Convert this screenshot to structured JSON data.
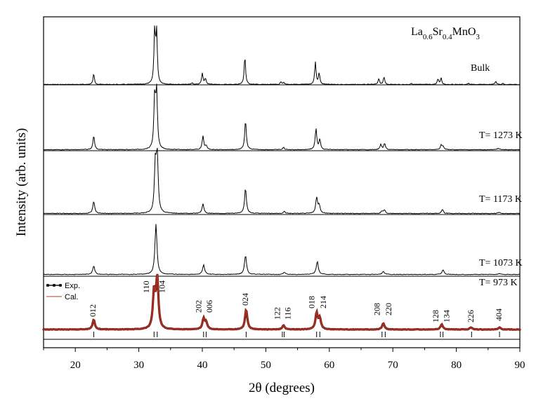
{
  "chart_data": {
    "type": "line",
    "title": "",
    "formula": {
      "parts": [
        {
          "text": "La",
          "sub": false
        },
        {
          "text": "0.6",
          "sub": true
        },
        {
          "text": "Sr",
          "sub": false
        },
        {
          "text": "0.4",
          "sub": true
        },
        {
          "text": "MnO",
          "sub": false
        },
        {
          "text": "3",
          "sub": true
        }
      ]
    },
    "xlabel": "2θ (degrees)",
    "ylabel": "Intensity (arb. units)",
    "xlim": [
      15,
      90
    ],
    "xticks": [
      20,
      30,
      40,
      50,
      60,
      70,
      80,
      90
    ],
    "y_ticks_shown": false,
    "series": [
      {
        "name": "Bulk",
        "peaks": [
          {
            "x": 22.9,
            "h": 0.2
          },
          {
            "x": 32.5,
            "h": 1.0
          },
          {
            "x": 32.8,
            "h": 0.96
          },
          {
            "x": 38.4,
            "h": 0.03
          },
          {
            "x": 40.0,
            "h": 0.21
          },
          {
            "x": 40.5,
            "h": 0.11
          },
          {
            "x": 46.7,
            "h": 0.53
          },
          {
            "x": 52.4,
            "h": 0.05
          },
          {
            "x": 52.8,
            "h": 0.04
          },
          {
            "x": 57.8,
            "h": 0.42
          },
          {
            "x": 58.4,
            "h": 0.21
          },
          {
            "x": 67.8,
            "h": 0.11
          },
          {
            "x": 68.6,
            "h": 0.14
          },
          {
            "x": 72.9,
            "h": 0.02
          },
          {
            "x": 77.1,
            "h": 0.1
          },
          {
            "x": 77.6,
            "h": 0.12
          },
          {
            "x": 81.9,
            "h": 0.02
          },
          {
            "x": 86.2,
            "h": 0.06
          },
          {
            "x": 87.3,
            "h": 0.02
          }
        ]
      },
      {
        "name": "T= 1273 K",
        "peaks": [
          {
            "x": 22.9,
            "h": 0.25
          },
          {
            "x": 32.5,
            "h": 0.92
          },
          {
            "x": 32.8,
            "h": 1.0
          },
          {
            "x": 40.1,
            "h": 0.24
          },
          {
            "x": 40.6,
            "h": 0.07
          },
          {
            "x": 46.8,
            "h": 0.52
          },
          {
            "x": 52.8,
            "h": 0.04
          },
          {
            "x": 57.9,
            "h": 0.37
          },
          {
            "x": 58.5,
            "h": 0.18
          },
          {
            "x": 68.1,
            "h": 0.09
          },
          {
            "x": 68.7,
            "h": 0.11
          },
          {
            "x": 77.6,
            "h": 0.08
          },
          {
            "x": 77.9,
            "h": 0.06
          },
          {
            "x": 86.6,
            "h": 0.03
          }
        ]
      },
      {
        "name": "T= 1173 K",
        "peaks": [
          {
            "x": 22.9,
            "h": 0.22
          },
          {
            "x": 32.6,
            "h": 0.85
          },
          {
            "x": 32.9,
            "h": 1.0
          },
          {
            "x": 40.1,
            "h": 0.17
          },
          {
            "x": 46.8,
            "h": 0.45
          },
          {
            "x": 52.9,
            "h": 0.04
          },
          {
            "x": 58.0,
            "h": 0.28
          },
          {
            "x": 58.4,
            "h": 0.14
          },
          {
            "x": 68.3,
            "h": 0.04
          },
          {
            "x": 68.7,
            "h": 0.06
          },
          {
            "x": 77.8,
            "h": 0.07
          },
          {
            "x": 86.7,
            "h": 0.02
          }
        ]
      },
      {
        "name": "T= 1073 K",
        "peaks": [
          {
            "x": 22.9,
            "h": 0.17
          },
          {
            "x": 32.7,
            "h": 1.0
          },
          {
            "x": 40.2,
            "h": 0.19
          },
          {
            "x": 46.8,
            "h": 0.38
          },
          {
            "x": 52.9,
            "h": 0.04
          },
          {
            "x": 58.1,
            "h": 0.26
          },
          {
            "x": 68.5,
            "h": 0.06
          },
          {
            "x": 77.9,
            "h": 0.09
          },
          {
            "x": 86.8,
            "h": 0.02
          }
        ]
      },
      {
        "name": "Exp.",
        "peaks": [
          {
            "x": 22.9,
            "h": 0.19
          },
          {
            "x": 32.4,
            "h": 0.72
          },
          {
            "x": 32.9,
            "h": 1.0
          },
          {
            "x": 40.2,
            "h": 0.2
          },
          {
            "x": 40.6,
            "h": 0.13
          },
          {
            "x": 46.9,
            "h": 0.39
          },
          {
            "x": 52.8,
            "h": 0.08
          },
          {
            "x": 58.0,
            "h": 0.32
          },
          {
            "x": 58.5,
            "h": 0.21
          },
          {
            "x": 68.5,
            "h": 0.12
          },
          {
            "x": 77.7,
            "h": 0.1
          },
          {
            "x": 82.3,
            "h": 0.04
          },
          {
            "x": 86.8,
            "h": 0.04
          }
        ]
      },
      {
        "name": "Cal.",
        "peaks": [
          {
            "x": 22.9,
            "h": 0.19
          },
          {
            "x": 32.4,
            "h": 0.72
          },
          {
            "x": 32.9,
            "h": 1.0
          },
          {
            "x": 40.2,
            "h": 0.2
          },
          {
            "x": 40.6,
            "h": 0.13
          },
          {
            "x": 46.9,
            "h": 0.39
          },
          {
            "x": 52.8,
            "h": 0.08
          },
          {
            "x": 58.0,
            "h": 0.32
          },
          {
            "x": 58.5,
            "h": 0.21
          },
          {
            "x": 68.5,
            "h": 0.12
          },
          {
            "x": 77.7,
            "h": 0.1
          },
          {
            "x": 82.3,
            "h": 0.04
          },
          {
            "x": 86.8,
            "h": 0.04
          }
        ]
      }
    ],
    "fit_label": "T= 973 K",
    "reflections": [
      {
        "hkl": "012",
        "x": 22.9
      },
      {
        "hkl": "110",
        "x": 32.4
      },
      {
        "hkl": "104",
        "x": 32.9
      },
      {
        "hkl": "202",
        "x": 40.2
      },
      {
        "hkl": "006",
        "x": 40.6
      },
      {
        "hkl": "024",
        "x": 46.9
      },
      {
        "hkl": "122",
        "x": 52.6
      },
      {
        "hkl": "116",
        "x": 52.9
      },
      {
        "hkl": "018",
        "x": 58.0
      },
      {
        "hkl": "214",
        "x": 58.5
      },
      {
        "hkl": "208",
        "x": 68.3
      },
      {
        "hkl": "220",
        "x": 68.8
      },
      {
        "hkl": "128",
        "x": 77.5
      },
      {
        "hkl": "134",
        "x": 77.9
      },
      {
        "hkl": "226",
        "x": 82.4
      },
      {
        "hkl": "404",
        "x": 86.8
      }
    ],
    "colors": {
      "frame": "#000000",
      "exp": "#111111",
      "cal": "#c0392b",
      "exp_fill": "#7a1f14"
    }
  }
}
